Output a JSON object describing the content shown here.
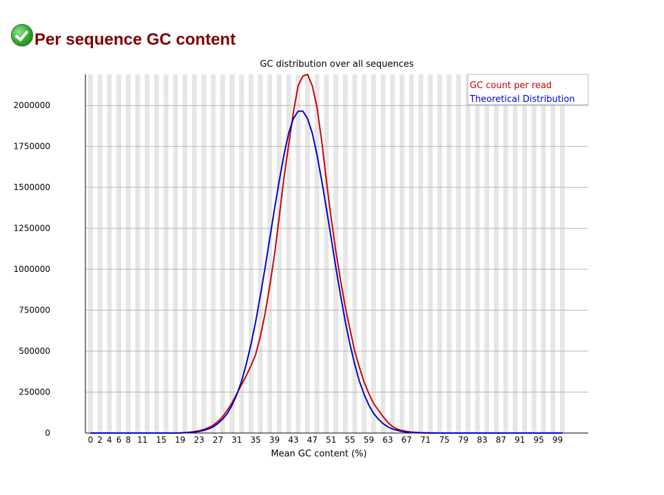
{
  "header": {
    "title": "Per sequence GC content",
    "status_icon": "check-icon"
  },
  "chart_data": {
    "type": "line",
    "title": "GC distribution over all sequences",
    "xlabel": "Mean GC content (%)",
    "ylabel": "",
    "xlim": [
      0,
      100
    ],
    "ylim": [
      0,
      2190000
    ],
    "x_tick_labels": [
      "0",
      "2",
      "4",
      "6",
      "8",
      "11",
      "15",
      "19",
      "23",
      "27",
      "31",
      "35",
      "39",
      "43",
      "47",
      "51",
      "55",
      "59",
      "63",
      "67",
      "71",
      "75",
      "79",
      "83",
      "87",
      "91",
      "95",
      "99"
    ],
    "y_ticks": [
      0,
      250000,
      500000,
      750000,
      1000000,
      1250000,
      1500000,
      1750000,
      2000000
    ],
    "grid": "horizontal",
    "legend_position": "top-right",
    "series": [
      {
        "name": "GC count per read",
        "color": "#cc0000",
        "x": [
          0,
          2,
          4,
          6,
          8,
          10,
          12,
          14,
          16,
          18,
          19,
          20,
          21,
          22,
          23,
          24,
          25,
          26,
          27,
          28,
          29,
          30,
          31,
          32,
          33,
          34,
          35,
          36,
          37,
          38,
          39,
          40,
          41,
          42,
          43,
          44,
          45,
          46,
          47,
          48,
          49,
          50,
          51,
          52,
          53,
          54,
          55,
          56,
          57,
          58,
          59,
          60,
          61,
          62,
          63,
          64,
          65,
          66,
          67,
          68,
          69,
          70,
          71,
          72,
          73,
          74,
          76,
          80,
          90,
          100
        ],
        "values": [
          0,
          0,
          0,
          0,
          0,
          0,
          0,
          0,
          0,
          0,
          1000,
          3000,
          5000,
          9000,
          14000,
          22000,
          33000,
          48000,
          70000,
          100000,
          140000,
          185000,
          240000,
          295000,
          350000,
          410000,
          480000,
          590000,
          730000,
          900000,
          1090000,
          1320000,
          1560000,
          1760000,
          1960000,
          2120000,
          2180000,
          2190000,
          2120000,
          1990000,
          1780000,
          1540000,
          1310000,
          1110000,
          930000,
          770000,
          630000,
          500000,
          400000,
          310000,
          240000,
          180000,
          140000,
          100000,
          65000,
          40000,
          24000,
          15000,
          10000,
          6000,
          4000,
          2500,
          1500,
          800,
          400,
          200,
          100,
          0,
          0,
          0
        ]
      },
      {
        "name": "Theoretical Distribution",
        "color": "#0000cc",
        "x": [
          0,
          2,
          4,
          6,
          8,
          10,
          12,
          14,
          16,
          18,
          19,
          20,
          21,
          22,
          23,
          24,
          25,
          26,
          27,
          28,
          29,
          30,
          31,
          32,
          33,
          34,
          35,
          36,
          37,
          38,
          39,
          40,
          41,
          42,
          43,
          44,
          45,
          46,
          47,
          48,
          49,
          50,
          51,
          52,
          53,
          54,
          55,
          56,
          57,
          58,
          59,
          60,
          61,
          62,
          63,
          64,
          65,
          66,
          67,
          68,
          69,
          70,
          71,
          72,
          73,
          74,
          76,
          80,
          90,
          100
        ],
        "values": [
          0,
          0,
          0,
          0,
          0,
          0,
          0,
          0,
          0,
          0,
          500,
          1500,
          3000,
          6000,
          10000,
          16000,
          25000,
          38000,
          58000,
          85000,
          120000,
          170000,
          235000,
          315000,
          420000,
          540000,
          680000,
          840000,
          1010000,
          1190000,
          1370000,
          1540000,
          1700000,
          1830000,
          1920000,
          1965000,
          1965000,
          1920000,
          1830000,
          1700000,
          1540000,
          1370000,
          1190000,
          1010000,
          840000,
          680000,
          540000,
          420000,
          315000,
          235000,
          170000,
          120000,
          85000,
          58000,
          38000,
          25000,
          16000,
          10000,
          6000,
          3000,
          1500,
          800,
          400,
          200,
          100,
          0,
          0,
          0,
          0,
          0
        ]
      }
    ]
  }
}
